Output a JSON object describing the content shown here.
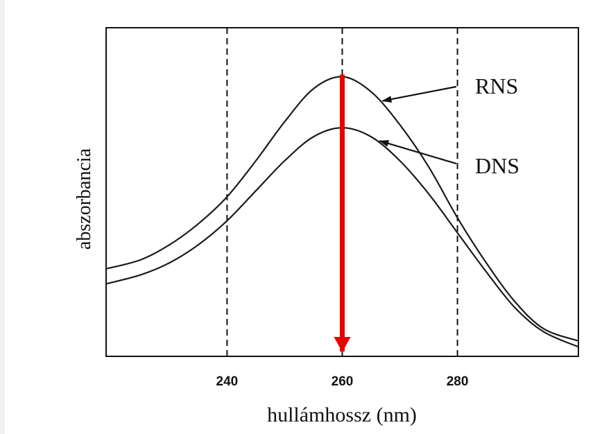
{
  "chart_data": {
    "type": "line",
    "title": "",
    "xlabel": "hullámhossz (nm)",
    "ylabel": "abszorbancia",
    "x_ticks": [
      "240",
      "260",
      "280"
    ],
    "xlim": [
      219,
      301
    ],
    "ylim": [
      0,
      1
    ],
    "grid_x_dashed_at": [
      240,
      260,
      280
    ],
    "y_tick_labels_shown": false,
    "series": [
      {
        "name": "RNS",
        "x": [
          219,
          225,
          230,
          235,
          240,
          245,
          250,
          255,
          260,
          265,
          270,
          275,
          280,
          285,
          290,
          295,
          301
        ],
        "y": [
          0.28,
          0.31,
          0.36,
          0.43,
          0.52,
          0.64,
          0.77,
          0.88,
          0.92,
          0.87,
          0.76,
          0.62,
          0.45,
          0.3,
          0.17,
          0.08,
          0.04
        ]
      },
      {
        "name": "DNS",
        "x": [
          219,
          225,
          230,
          235,
          240,
          245,
          250,
          255,
          260,
          265,
          270,
          275,
          280,
          285,
          290,
          295,
          301
        ],
        "y": [
          0.23,
          0.26,
          0.3,
          0.36,
          0.44,
          0.54,
          0.64,
          0.72,
          0.75,
          0.72,
          0.64,
          0.53,
          0.4,
          0.27,
          0.15,
          0.07,
          0.02
        ]
      }
    ],
    "annotations": [
      {
        "type": "arrow",
        "color": "#e60000",
        "direction": "down",
        "x": 260,
        "from_y": 0.92,
        "to_y": 0
      },
      {
        "type": "label-arrow",
        "text": "RNS",
        "target_series": "RNS"
      },
      {
        "type": "label-arrow",
        "text": "DNS",
        "target_series": "DNS"
      }
    ],
    "colors": {
      "curves": "#1a1a1a",
      "highlight_arrow": "#e60000"
    }
  }
}
